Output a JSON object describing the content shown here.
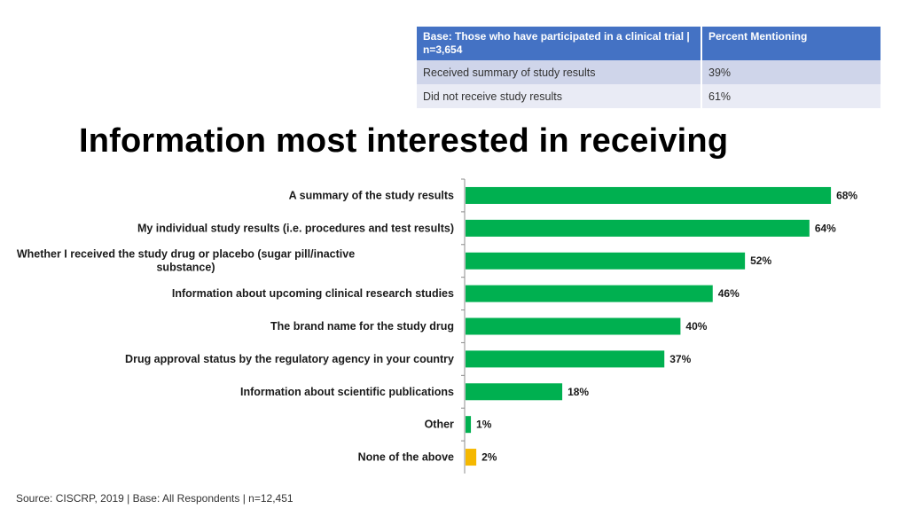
{
  "summary_table": {
    "headers": [
      "Base: Those who have participated in a clinical trial | n=3,654",
      "Percent Mentioning"
    ],
    "rows": [
      [
        "Received summary of study results",
        "39%"
      ],
      [
        "Did not receive study results",
        "61%"
      ]
    ],
    "colors": {
      "header": "#4472c4",
      "row_even": "#cfd5ea",
      "row_odd": "#e9ebf5"
    }
  },
  "title": "Information most interested in receiving",
  "source": "Source: CISCRP, 2019 | Base: All Respondents | n=12,451",
  "chart_data": {
    "type": "bar",
    "orientation": "horizontal",
    "title": "Information most interested in receiving",
    "categories": [
      [
        "A summary of the study results"
      ],
      [
        "My individual study results (i.e. procedures and test results)"
      ],
      [
        "Whether I received the study drug or placebo (sugar pill/inactive",
        "substance)"
      ],
      [
        "Information about upcoming clinical research studies"
      ],
      [
        "The brand name for the study drug"
      ],
      [
        "Drug approval status by the regulatory agency in your country"
      ],
      [
        "Information about scientific publications"
      ],
      [
        "Other"
      ],
      [
        "None of the above"
      ]
    ],
    "values": [
      68,
      64,
      52,
      46,
      40,
      37,
      18,
      1,
      2
    ],
    "value_labels": [
      "68%",
      "64%",
      "52%",
      "46%",
      "40%",
      "37%",
      "18%",
      "1%",
      "2%"
    ],
    "bar_colors": [
      "#00b050",
      "#00b050",
      "#00b050",
      "#00b050",
      "#00b050",
      "#00b050",
      "#00b050",
      "#00b050",
      "#f5b800"
    ],
    "xlim": [
      0,
      100
    ],
    "xlabel": "",
    "ylabel": "",
    "grid": false
  }
}
